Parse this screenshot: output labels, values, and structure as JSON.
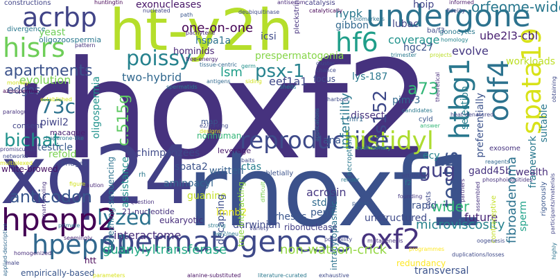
{
  "words": [
    {
      "text": "rhoxf2",
      "color": "#46327e"
    },
    {
      "text": "rhoxf1",
      "color": "#3b518b"
    },
    {
      "text": "xq24",
      "color": "#424086"
    },
    {
      "text": "ht-y2h",
      "color": "#b5de2b"
    },
    {
      "text": "spermatogenesis",
      "color": "#3e4989"
    },
    {
      "text": "undergone",
      "color": "#2c728e"
    },
    {
      "text": "acrbp",
      "color": "#414487"
    },
    {
      "text": "hisrs",
      "color": "#6ece58"
    },
    {
      "text": "poissy",
      "color": "#26828e"
    },
    {
      "text": "reproductive",
      "color": "#3e4a89"
    },
    {
      "text": "histidyl",
      "color": "#addc30"
    },
    {
      "text": "lyzed",
      "color": "#2c728e"
    },
    {
      "text": "hpepp2",
      "color": "#440154"
    },
    {
      "text": "hpepp1",
      "color": "#31688e"
    },
    {
      "text": "hf6",
      "color": "#1f9e89"
    },
    {
      "text": "oxf2",
      "color": "#46327e"
    },
    {
      "text": "odf4",
      "color": "#2c728e"
    },
    {
      "text": "spata19",
      "color": "#d8e219"
    },
    {
      "text": "htbg1",
      "color": "#2a788e"
    },
    {
      "text": "testis",
      "color": "#3b528b"
    },
    {
      "text": "apartments",
      "color": "#3b528b"
    },
    {
      "text": "bichat",
      "color": "#20928c"
    },
    {
      "text": "73c",
      "color": "#2c728e"
    },
    {
      "text": "anticodon",
      "color": "#39568c"
    },
    {
      "text": "c.515g",
      "color": "#5ec962"
    },
    {
      "text": "psx-1",
      "color": "#26828e"
    },
    {
      "text": "his152",
      "color": "#3e4989"
    },
    {
      "text": "a73",
      "color": "#35b779"
    },
    {
      "text": "gug",
      "color": "#423f85"
    },
    {
      "text": "infertility",
      "color": "#2a788e"
    },
    {
      "text": "microviscosity",
      "color": "#26828e"
    },
    {
      "text": "non-watson-crick",
      "color": "#93d741"
    },
    {
      "text": "guanylyltransferase",
      "color": "#22a884"
    },
    {
      "text": "interactome",
      "color": "#472d7b"
    },
    {
      "text": "wider",
      "color": "#35b779"
    },
    {
      "text": "future",
      "color": "#482677"
    },
    {
      "text": "orfeome-wide",
      "color": "#2a788e"
    },
    {
      "text": "ube2l3-cbl",
      "color": "#481f70"
    },
    {
      "text": "one-on-one",
      "color": "#440154"
    },
    {
      "text": "exonucleases",
      "color": "#481668"
    },
    {
      "text": "coverage",
      "color": "#20928c"
    },
    {
      "text": "hgc27",
      "color": "#3b528b"
    },
    {
      "text": "evolve",
      "color": "#453781"
    },
    {
      "text": "hypk",
      "color": "#2a788e"
    },
    {
      "text": "lubac",
      "color": "#404688"
    },
    {
      "text": "hoip",
      "color": "#414487"
    },
    {
      "text": "gibbon",
      "color": "#31688e"
    },
    {
      "text": "icsi",
      "color": "#3e4989"
    },
    {
      "text": "hspa1a",
      "color": "#2c728e"
    },
    {
      "text": "hominids",
      "color": "#482475"
    },
    {
      "text": "prespermatogonia",
      "color": "#86d549"
    },
    {
      "text": "lsm",
      "color": "#1f9e89"
    },
    {
      "text": "eef1a1",
      "color": "#3f4788"
    },
    {
      "text": "two-hybrid",
      "color": "#31688e"
    },
    {
      "text": "lys-187",
      "color": "#2a788e"
    },
    {
      "text": "pim-3",
      "color": "#31688e"
    },
    {
      "text": "evolution",
      "color": "#7ad151"
    },
    {
      "text": "yeast",
      "color": "#6ece58"
    },
    {
      "text": "oligozoospermia",
      "color": "#2a788e"
    },
    {
      "text": "edges",
      "color": "#39568c"
    },
    {
      "text": "piwil2",
      "color": "#414487"
    },
    {
      "text": "oligospermia",
      "color": "#20928c"
    },
    {
      "text": "testicle",
      "color": "#38598c"
    },
    {
      "text": "refold",
      "color": "#7ad151"
    },
    {
      "text": "white-browed",
      "color": "#471063"
    },
    {
      "text": "chimpanzees",
      "color": "#3e4989"
    },
    {
      "text": "spata2",
      "color": "#3b528b"
    },
    {
      "text": "written",
      "color": "#355f8d"
    },
    {
      "text": "aminoacyl",
      "color": "#32648e"
    },
    {
      "text": "acrosin",
      "color": "#453781"
    },
    {
      "text": "gadd45b",
      "color": "#46337f"
    },
    {
      "text": "ctas",
      "color": "#277f8e"
    },
    {
      "text": "ana",
      "color": "#39568c"
    },
    {
      "text": "dissect",
      "color": "#46327e"
    },
    {
      "text": "focus",
      "color": "#3e4a89"
    },
    {
      "text": "selection",
      "color": "#277f8e"
    },
    {
      "text": "preferentially",
      "color": "#3b528b"
    },
    {
      "text": "framework",
      "color": "#2a788e"
    },
    {
      "text": "workloads",
      "color": "#bddf26"
    },
    {
      "text": "suitable",
      "color": "#2a788e"
    },
    {
      "text": "wealth",
      "color": "#472c7a"
    },
    {
      "text": "ecy",
      "color": "#26828e"
    },
    {
      "text": "sperm",
      "color": "#1fa188"
    },
    {
      "text": "fibroadenoma",
      "color": "#2c728e"
    },
    {
      "text": "guanine",
      "color": "#c2df23"
    },
    {
      "text": "decapping",
      "color": "#3d4e8a"
    },
    {
      "text": "pem",
      "color": "#38598c"
    },
    {
      "text": "std",
      "color": "#306a8e"
    },
    {
      "text": "rhesus",
      "color": "#39558c"
    },
    {
      "text": "darwinian",
      "color": "#3e4989"
    },
    {
      "text": "ribonuclease",
      "color": "#433e85"
    },
    {
      "text": "unstructured",
      "color": "#3e4a89"
    },
    {
      "text": "rapid",
      "color": "#3b528b"
    },
    {
      "text": "eukaryotic",
      "color": "#472d7b"
    },
    {
      "text": "lmnb2",
      "color": "#e5e419"
    },
    {
      "text": "assistance",
      "color": "#228d8d"
    },
    {
      "text": "21-nucleotide",
      "color": "#46327e"
    },
    {
      "text": "empirically-based",
      "color": "#39568c"
    },
    {
      "text": "htt",
      "color": "#440154"
    },
    {
      "text": "redundancy",
      "color": "#fde725"
    },
    {
      "text": "transversal",
      "color": "#3b528b"
    },
    {
      "text": "screening-sequencing",
      "color": "#2c728e"
    },
    {
      "text": "true-interacting",
      "color": "#8fd744"
    },
    {
      "text": "intracytoplasmic",
      "color": "#2c728e"
    },
    {
      "text": "nonhuman",
      "color": "#34b679"
    },
    {
      "text": "leverage",
      "color": "#48186a"
    },
    {
      "text": "map",
      "color": "#39568c"
    },
    {
      "text": "consent",
      "color": "#414487"
    },
    {
      "text": "macaque",
      "color": "#482071"
    },
    {
      "text": "bridges",
      "color": "#3e4a89"
    },
    {
      "text": "subletially",
      "color": "#3b528b"
    },
    {
      "text": "constructions",
      "color": "#414487"
    },
    {
      "text": "divergence",
      "color": "#2a788e"
    },
    {
      "text": "huntingtin",
      "color": "#440154"
    },
    {
      "text": "deubiquitinase",
      "color": "#3e4989"
    },
    {
      "text": "nucleated",
      "color": "#414487"
    },
    {
      "text": "pattern",
      "color": "#46327e"
    },
    {
      "text": "catalysis",
      "color": "#433e85"
    },
    {
      "text": "catalytically",
      "color": "#440154"
    },
    {
      "text": "antiserum",
      "color": "#482878"
    },
    {
      "text": "informed",
      "color": "#481769"
    },
    {
      "text": "fidelity",
      "color": "#414487"
    },
    {
      "text": "biomarkers",
      "color": "#2c728e"
    },
    {
      "text": "gonocytes",
      "color": "#2a788e"
    },
    {
      "text": "ba/f3",
      "color": "#3e4989"
    },
    {
      "text": "homology",
      "color": "#25848e"
    },
    {
      "text": "projects",
      "color": "#bade28"
    },
    {
      "text": "trimester",
      "color": "#29798e"
    },
    {
      "text": "obtaining",
      "color": "#3e4989"
    },
    {
      "text": "pleckstrin",
      "color": "#46327e"
    },
    {
      "text": "pachytene",
      "color": "#482878"
    },
    {
      "text": "free-energy",
      "color": "#482173"
    },
    {
      "text": "tissue-centric",
      "color": "#31688e"
    },
    {
      "text": "germ",
      "color": "#21918c"
    },
    {
      "text": "antigens",
      "color": "#31688e"
    },
    {
      "text": "cluster",
      "color": "#3e4989"
    },
    {
      "text": "chance",
      "color": "#3e4989"
    },
    {
      "text": "sheds",
      "color": "#26828e"
    },
    {
      "text": "siding",
      "color": "#d2e21b"
    },
    {
      "text": "azoospermia",
      "color": "#440154"
    },
    {
      "text": "paralogue",
      "color": "#46327e"
    },
    {
      "text": "promiscuous",
      "color": "#423f85"
    },
    {
      "text": "networks",
      "color": "#3e4989"
    },
    {
      "text": "multiplexed",
      "color": "#d8e219"
    },
    {
      "text": "monkey",
      "color": "#d0e11c"
    },
    {
      "text": "spermatids",
      "color": "#2a788e"
    },
    {
      "text": "established",
      "color": "#d0e11c"
    },
    {
      "text": "chaperone-like",
      "color": "#2a788e"
    },
    {
      "text": "harbour",
      "color": "#3e4989"
    },
    {
      "text": "necroptosis",
      "color": "#2a788e"
    },
    {
      "text": "applications",
      "color": "#2c728e"
    },
    {
      "text": "tnfr1",
      "color": "#31688e"
    },
    {
      "text": "cyld",
      "color": "#39568c"
    },
    {
      "text": "answer",
      "color": "#35b779"
    },
    {
      "text": "candidates",
      "color": "#2a788e"
    },
    {
      "text": "theoretical",
      "color": "#472c7a"
    },
    {
      "text": "heat-denatured",
      "color": "#414487"
    },
    {
      "text": "exosome",
      "color": "#46327e"
    },
    {
      "text": "reagents",
      "color": "#31688e"
    },
    {
      "text": "phosphoinositides",
      "color": "#46327e"
    },
    {
      "text": "evolutionary",
      "color": "#21918c"
    },
    {
      "text": "render",
      "color": "#2a788e"
    },
    {
      "text": "attributed",
      "color": "#414487"
    },
    {
      "text": "f2",
      "color": "#2a788e"
    },
    {
      "text": "partners",
      "color": "#472d7b"
    },
    {
      "text": "assembled",
      "color": "#46327e"
    },
    {
      "text": "rigorously",
      "color": "#39568c"
    },
    {
      "text": "participants/materials",
      "color": "#414487"
    },
    {
      "text": "highly",
      "color": "#2c728e"
    },
    {
      "text": "contraceptive",
      "color": "#c2df23"
    },
    {
      "text": "strong",
      "color": "#2a788e"
    },
    {
      "text": "variety",
      "color": "#414487"
    },
    {
      "text": "power",
      "color": "#38598c"
    },
    {
      "text": "founding",
      "color": "#453882"
    },
    {
      "text": "costs",
      "color": "#3e4989"
    },
    {
      "text": "difficult",
      "color": "#7ad151"
    },
    {
      "text": "smart-pooling",
      "color": "#46327e"
    },
    {
      "text": "applied-descriptive",
      "color": "#31688e"
    },
    {
      "text": "primate",
      "color": "#2c728e"
    },
    {
      "text": "seemingly",
      "color": "#482475"
    },
    {
      "text": "homogenized",
      "color": "#472c7a"
    },
    {
      "text": "male",
      "color": "#414487"
    },
    {
      "text": "her2/neu",
      "color": "#2a788e"
    },
    {
      "text": "possibility",
      "color": "#414487"
    },
    {
      "text": "mutagenesis",
      "color": "#46327e"
    },
    {
      "text": "oogenesis",
      "color": "#3e4989"
    },
    {
      "text": "duplications/losses",
      "color": "#3e4989"
    },
    {
      "text": "parameters",
      "color": "#d8e219"
    },
    {
      "text": "alanine-substituted",
      "color": "#471063"
    },
    {
      "text": "literature-curated",
      "color": "#2a788e"
    },
    {
      "text": "exhaustive",
      "color": "#3e4989"
    },
    {
      "text": "question",
      "color": "#46327e"
    },
    {
      "text": "caution",
      "color": "#482878"
    },
    {
      "text": "rh",
      "color": "#2a788e"
    },
    {
      "text": "baits",
      "color": "#3e4989"
    },
    {
      "text": "designs",
      "color": "#d8e219"
    },
    {
      "text": "e2/e3-ring",
      "color": "#3e4989"
    },
    {
      "text": "programmes",
      "color": "#fde725"
    },
    {
      "text": "path",
      "color": "#39568c"
    },
    {
      "text": "figure",
      "color": "#d0e11c"
    }
  ]
}
